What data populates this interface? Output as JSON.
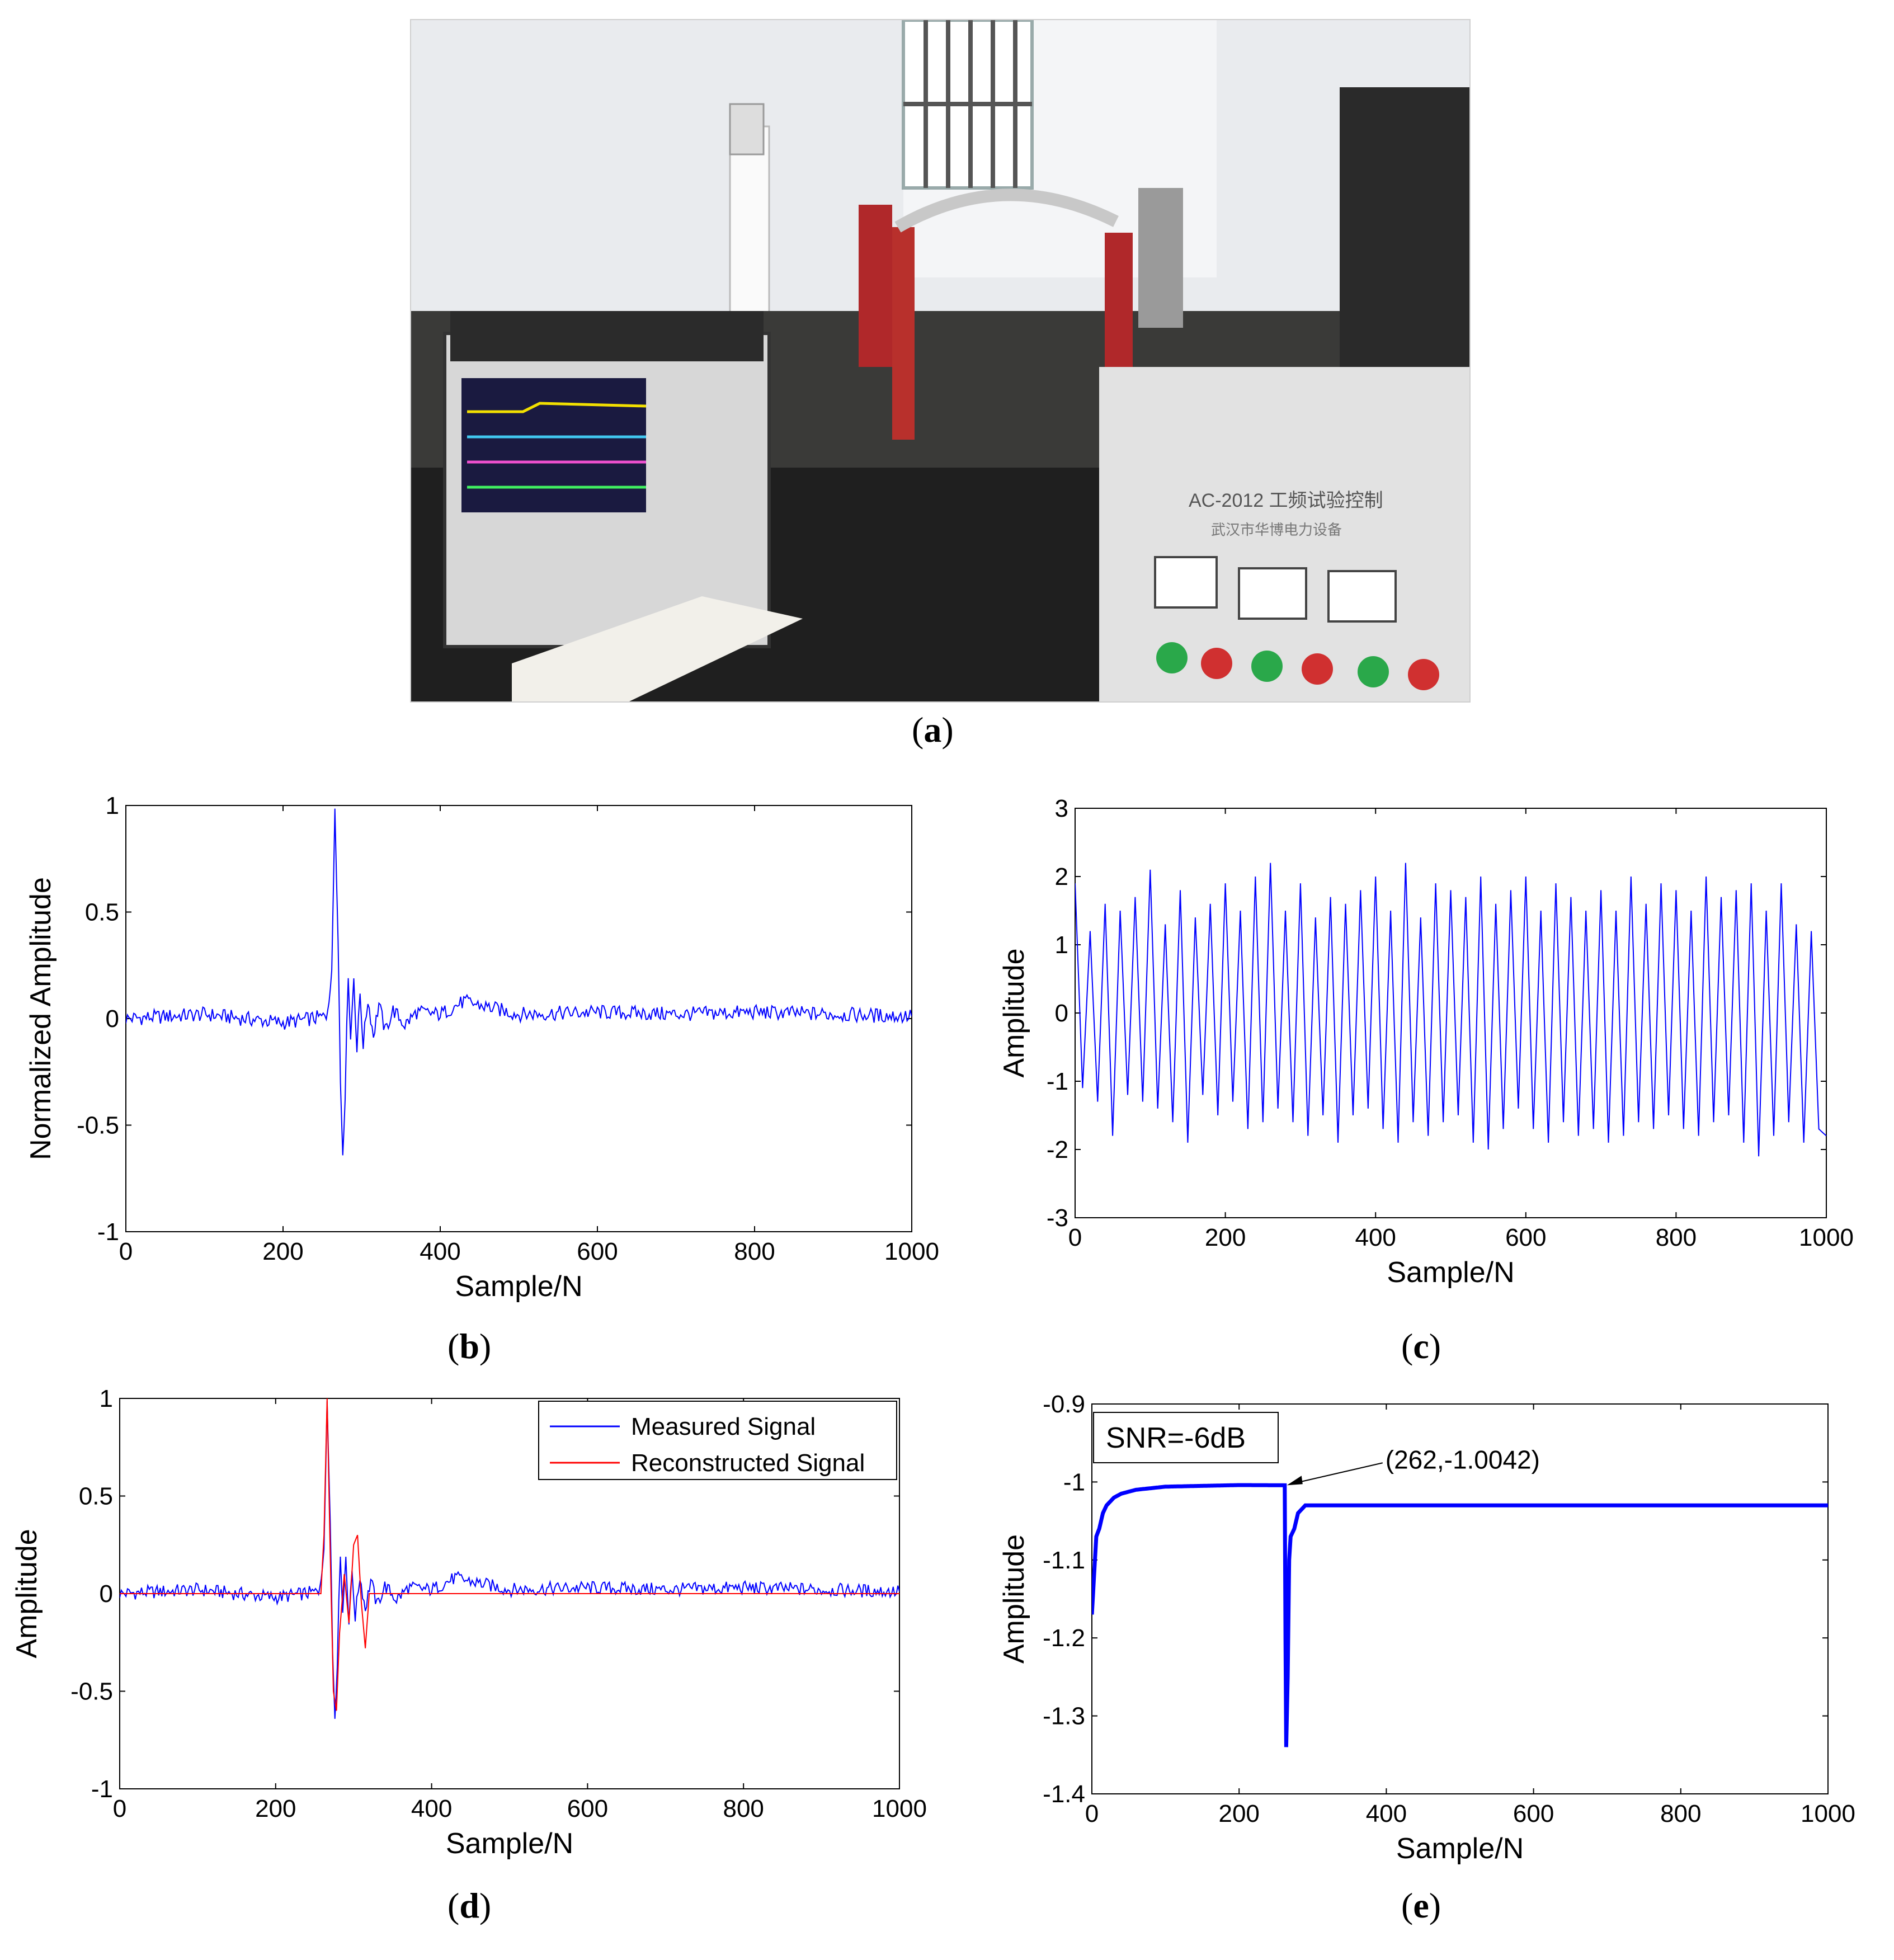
{
  "labels": {
    "a": "a",
    "b": "b",
    "c": "c",
    "d": "d",
    "e": "e"
  },
  "photo": {
    "description_icon": "lab-photo-icon",
    "panel_text_1": "AC-2012 工频试验控制",
    "panel_text_2": "武汉市华博电力设备"
  },
  "colors": {
    "blue": "#0000ff",
    "red": "#ff0000"
  },
  "chart_data": [
    {
      "id": "b",
      "type": "line",
      "title": "",
      "xlabel": "Sample/N",
      "ylabel": "Normalized Amplitude",
      "xlim": [
        0,
        1000
      ],
      "ylim": [
        -1,
        1
      ],
      "xticks": [
        "0",
        "200",
        "400",
        "600",
        "800",
        "1000"
      ],
      "yticks": [
        "-1",
        "-0.5",
        "0",
        "0.5",
        "1"
      ],
      "series": [
        {
          "color": "#0000ff",
          "x": [
            0,
            100,
            200,
            255,
            262,
            266,
            270,
            273,
            276,
            279,
            283,
            286,
            290,
            294,
            298,
            302,
            308,
            315,
            322,
            330,
            340,
            355,
            370,
            400,
            430,
            500,
            600,
            700,
            800,
            900,
            1000
          ],
          "y": [
            0,
            0.02,
            -0.02,
            0.01,
            0.2,
            1.0,
            0.4,
            -0.3,
            -0.63,
            -0.35,
            0.22,
            -0.1,
            0.2,
            -0.15,
            0.12,
            -0.12,
            0.09,
            -0.08,
            0.07,
            -0.06,
            0.04,
            -0.03,
            0.03,
            0.02,
            0.08,
            0.02,
            0.03,
            0.02,
            0.03,
            0.02,
            0.01
          ]
        }
      ]
    },
    {
      "id": "c",
      "type": "line",
      "title": "",
      "xlabel": "Sample/N",
      "ylabel": "Amplitude",
      "xlim": [
        0,
        1000
      ],
      "ylim": [
        -3,
        3
      ],
      "xticks": [
        "0",
        "200",
        "400",
        "600",
        "800",
        "1000"
      ],
      "yticks": [
        "-3",
        "-2",
        "-1",
        "0",
        "1",
        "2",
        "3"
      ],
      "series": [
        {
          "color": "#0000ff",
          "x": [
            0,
            10,
            20,
            30,
            40,
            50,
            60,
            70,
            80,
            90,
            100,
            110,
            120,
            130,
            140,
            150,
            160,
            170,
            180,
            190,
            200,
            210,
            220,
            230,
            240,
            250,
            260,
            270,
            280,
            290,
            300,
            310,
            320,
            330,
            340,
            350,
            360,
            370,
            380,
            390,
            400,
            410,
            420,
            430,
            440,
            450,
            460,
            470,
            480,
            490,
            500,
            510,
            520,
            530,
            540,
            550,
            560,
            570,
            580,
            590,
            600,
            610,
            620,
            630,
            640,
            650,
            660,
            670,
            680,
            690,
            700,
            710,
            720,
            730,
            740,
            750,
            760,
            770,
            780,
            790,
            800,
            810,
            820,
            830,
            840,
            850,
            860,
            870,
            880,
            890,
            900,
            910,
            920,
            930,
            940,
            950,
            960,
            970,
            980,
            990,
            1000
          ],
          "y": [
            1.9,
            -1.1,
            1.2,
            -1.3,
            1.6,
            -1.8,
            1.5,
            -1.2,
            1.7,
            -1.3,
            2.1,
            -1.4,
            1.3,
            -1.6,
            1.8,
            -1.9,
            1.4,
            -1.2,
            1.6,
            -1.5,
            1.9,
            -1.3,
            1.5,
            -1.7,
            2.0,
            -1.6,
            2.2,
            -1.4,
            1.5,
            -1.6,
            1.9,
            -1.8,
            1.4,
            -1.5,
            1.7,
            -1.9,
            1.6,
            -1.5,
            1.8,
            -1.4,
            2.0,
            -1.7,
            1.5,
            -1.9,
            2.2,
            -1.6,
            1.4,
            -1.8,
            1.9,
            -1.6,
            1.8,
            -1.5,
            1.7,
            -1.9,
            2.0,
            -2.0,
            1.6,
            -1.7,
            1.8,
            -1.4,
            2.0,
            -1.7,
            1.5,
            -1.9,
            1.9,
            -1.6,
            1.7,
            -1.8,
            1.5,
            -1.7,
            1.8,
            -1.9,
            1.5,
            -1.8,
            2.0,
            -1.6,
            1.6,
            -1.7,
            1.9,
            -1.5,
            1.8,
            -1.7,
            1.5,
            -1.8,
            2.0,
            -1.6,
            1.7,
            -1.5,
            1.8,
            -1.9,
            1.9,
            -2.1,
            1.5,
            -1.8,
            1.9,
            -1.6,
            1.3,
            -1.9,
            1.2,
            -1.7,
            -1.8
          ]
        }
      ]
    },
    {
      "id": "d",
      "type": "line",
      "title": "",
      "xlabel": "Sample/N",
      "ylabel": "Amplitude",
      "xlim": [
        0,
        1000
      ],
      "ylim": [
        -1,
        1
      ],
      "xticks": [
        "0",
        "200",
        "400",
        "600",
        "800",
        "1000"
      ],
      "yticks": [
        "-1",
        "-0.5",
        "0",
        "0.5",
        "1"
      ],
      "legend": [
        "Measured Signal",
        "Reconstructed Signal"
      ],
      "legend_position": "top-right",
      "series": [
        {
          "name": "Measured Signal",
          "color": "#0000ff",
          "x": [
            0,
            100,
            200,
            255,
            262,
            266,
            270,
            273,
            276,
            279,
            283,
            286,
            290,
            294,
            298,
            302,
            308,
            315,
            322,
            330,
            340,
            355,
            370,
            400,
            430,
            500,
            600,
            700,
            800,
            900,
            1000
          ],
          "y": [
            0,
            0.02,
            -0.02,
            0.01,
            0.2,
            1.0,
            0.4,
            -0.3,
            -0.63,
            -0.35,
            0.22,
            -0.1,
            0.2,
            -0.15,
            0.12,
            -0.12,
            0.09,
            -0.08,
            0.07,
            -0.06,
            0.04,
            -0.03,
            0.03,
            0.02,
            0.08,
            0.02,
            0.03,
            0.02,
            0.03,
            0.02,
            0.01
          ]
        },
        {
          "name": "Reconstructed Signal",
          "color": "#ff0000",
          "x": [
            0,
            100,
            200,
            258,
            262,
            266,
            270,
            274,
            278,
            282,
            288,
            294,
            300,
            305,
            310,
            315,
            320,
            400,
            600,
            800,
            1000
          ],
          "y": [
            0,
            0,
            0,
            0,
            0.3,
            1.0,
            0.2,
            -0.5,
            -0.6,
            -0.2,
            0.1,
            -0.15,
            0.25,
            0.3,
            -0.05,
            -0.28,
            0,
            0,
            0,
            0,
            0
          ]
        }
      ]
    },
    {
      "id": "e",
      "type": "line",
      "title": "",
      "xlabel": "Sample/N",
      "ylabel": "Amplitude",
      "xlim": [
        0,
        1000
      ],
      "ylim": [
        -1.4,
        -0.9
      ],
      "xticks": [
        "0",
        "200",
        "400",
        "600",
        "800",
        "1000"
      ],
      "yticks": [
        "-1.4",
        "-1.3",
        "-1.2",
        "-1.1",
        "-1",
        "-0.9"
      ],
      "text_box": "SNR=-6dB",
      "annotation": "(262,-1.0042)",
      "annotation_point": [
        262,
        -1.0042
      ],
      "series": [
        {
          "color": "#0000ff",
          "x": [
            0,
            3,
            6,
            10,
            15,
            20,
            30,
            40,
            60,
            80,
            100,
            150,
            200,
            262,
            263,
            264,
            266,
            268,
            270,
            275,
            280,
            290,
            300,
            400,
            600,
            800,
            1000
          ],
          "y": [
            -1.17,
            -1.12,
            -1.07,
            -1.06,
            -1.04,
            -1.03,
            -1.02,
            -1.015,
            -1.01,
            -1.008,
            -1.006,
            -1.005,
            -1.004,
            -1.0042,
            -1.2,
            -1.34,
            -1.25,
            -1.1,
            -1.07,
            -1.06,
            -1.04,
            -1.03,
            -1.03,
            -1.03,
            -1.03,
            -1.03,
            -1.03
          ]
        }
      ]
    }
  ]
}
